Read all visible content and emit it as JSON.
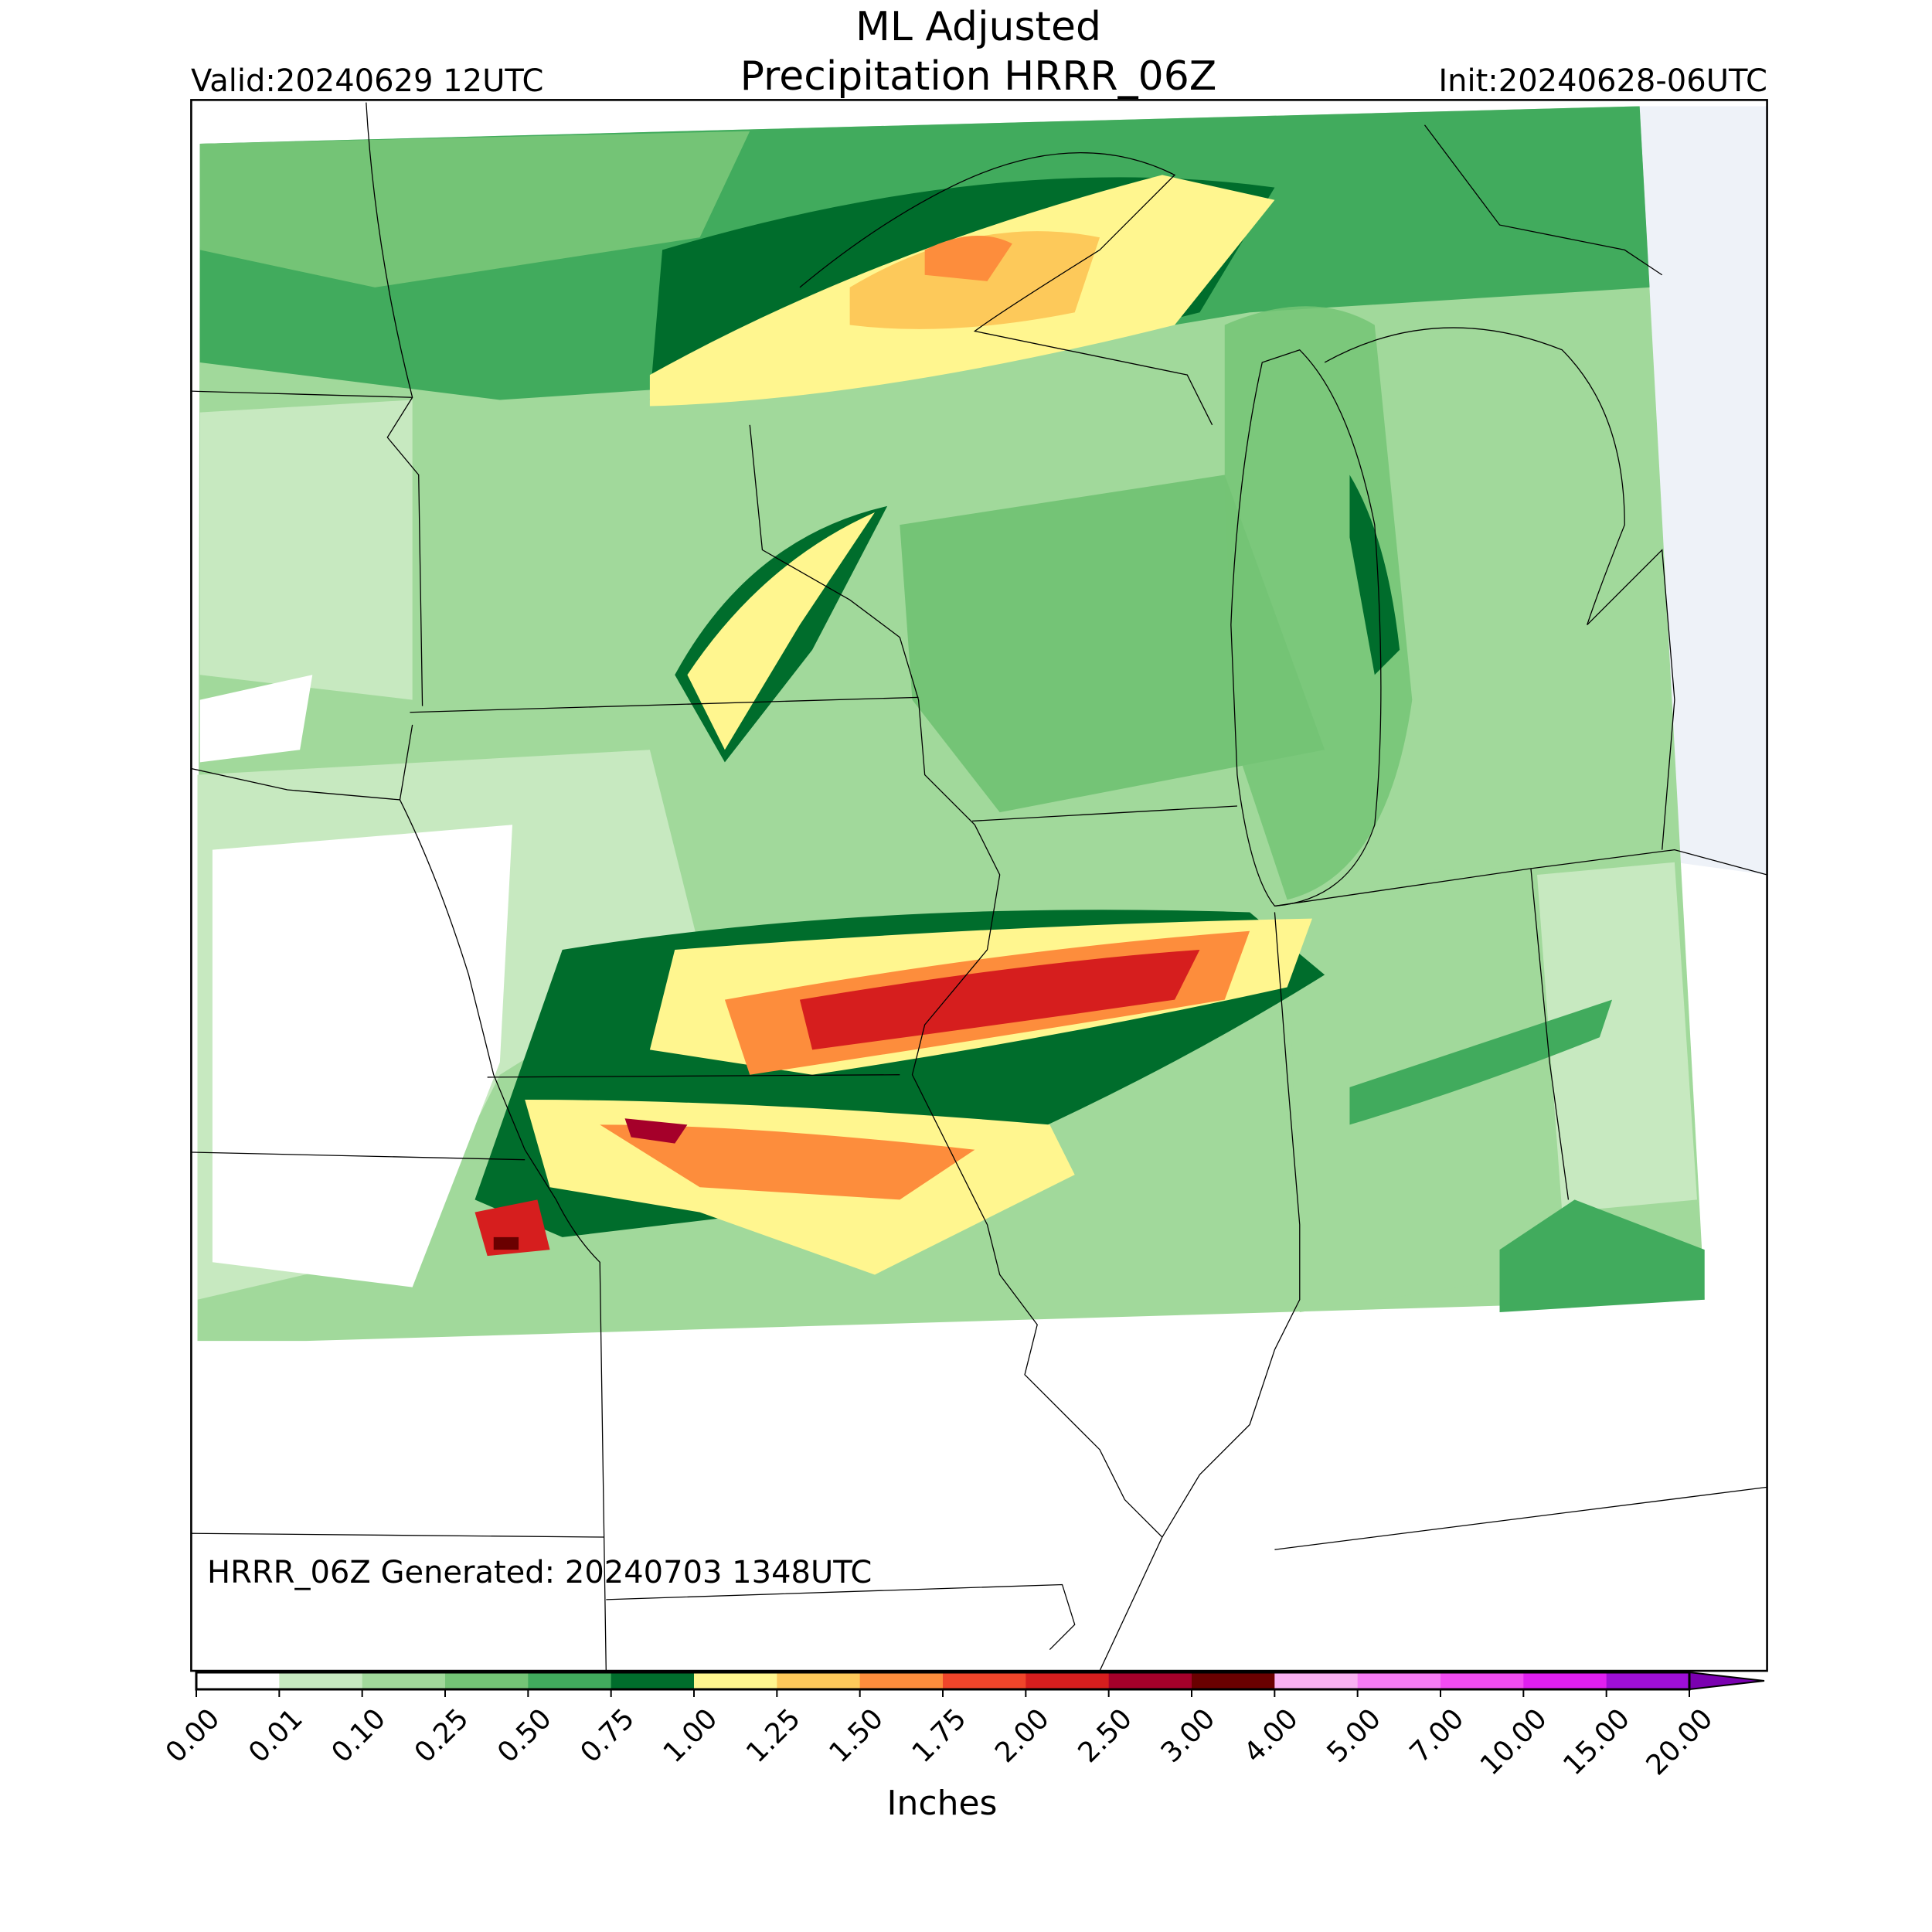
{
  "header": {
    "title_lines": [
      "ML Adjusted",
      "Precipitation HRRR_06Z"
    ],
    "valid": "Valid:20240629 12UTC",
    "init": "Init:20240628-06UTC"
  },
  "annotation": "HRRR_06Z Generated: 20240703 1348UTC",
  "colorbar": {
    "label": "Inches",
    "ticks": [
      {
        "value": 0,
        "label": "0.00"
      },
      {
        "value": 0.01,
        "label": "0.01"
      },
      {
        "value": 0.1,
        "label": "0.10"
      },
      {
        "value": 0.25,
        "label": "0.25"
      },
      {
        "value": 0.5,
        "label": "0.50"
      },
      {
        "value": 0.75,
        "label": "0.75"
      },
      {
        "value": 1,
        "label": "1.00"
      },
      {
        "value": 1.25,
        "label": "1.25"
      },
      {
        "value": 1.5,
        "label": "1.50"
      },
      {
        "value": 1.75,
        "label": "1.75"
      },
      {
        "value": 2,
        "label": "2.00"
      },
      {
        "value": 2.5,
        "label": "2.50"
      },
      {
        "value": 3,
        "label": "3.00"
      },
      {
        "value": 4,
        "label": "4.00"
      },
      {
        "value": 5,
        "label": "5.00"
      },
      {
        "value": 7,
        "label": "7.00"
      },
      {
        "value": 10,
        "label": "10.00"
      },
      {
        "value": 15,
        "label": "15.00"
      },
      {
        "value": 20,
        "label": "20.00"
      }
    ],
    "colors": [
      "#ffffff",
      "#c7e9c0",
      "#a1d99b",
      "#74c476",
      "#41ab5d",
      "#006d2c",
      "#fff68f",
      "#fdc95a",
      "#fd8d3c",
      "#f0452a",
      "#d61e1e",
      "#a5002a",
      "#6a0000",
      "#f9b1f2",
      "#f67cf5",
      "#f24cf2",
      "#e01ff0",
      "#9e0fd6"
    ],
    "extend_color": "#7a00b0"
  }
}
